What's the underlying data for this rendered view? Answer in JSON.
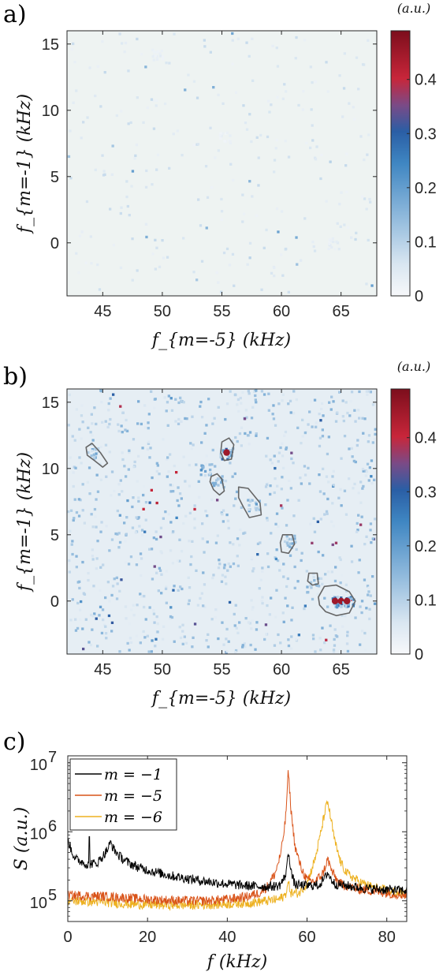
{
  "chart_data": [
    {
      "type": "heatmap",
      "panel_label": "a)",
      "xlabel": "f_{m=-5} (kHz)",
      "ylabel": "f_{m=-1} (kHz)",
      "colorbar_label": "(a.u.)",
      "xlim": [
        42,
        68
      ],
      "ylim": [
        -4,
        16
      ],
      "clim": [
        0,
        0.49
      ],
      "xticks": [
        "45",
        "50",
        "55",
        "60",
        "65"
      ],
      "yticks": [
        "0",
        "5",
        "10",
        "15"
      ],
      "cticks": [
        "0",
        "0.1",
        "0.2",
        "0.3",
        "0.4"
      ],
      "background_level": 0.03,
      "hotspots": [
        {
          "x": 64.3,
          "y": 0.0,
          "value": 0.07
        },
        {
          "x": 49.5,
          "y": 14.2,
          "value": 0.05
        },
        {
          "x": 55.2,
          "y": 8.0,
          "value": 0.05
        }
      ]
    },
    {
      "type": "heatmap",
      "panel_label": "b)",
      "xlabel": "f_{m=-5} (kHz)",
      "ylabel": "f_{m=-1} (kHz)",
      "colorbar_label": "(a.u.)",
      "xlim": [
        42,
        68
      ],
      "ylim": [
        -4,
        16
      ],
      "clim": [
        0,
        0.49
      ],
      "xticks": [
        "45",
        "50",
        "55",
        "60",
        "65"
      ],
      "yticks": [
        "0",
        "5",
        "10",
        "15"
      ],
      "cticks": [
        "0",
        "0.1",
        "0.2",
        "0.3",
        "0.4"
      ],
      "background_level": 0.06,
      "hotspots": [
        {
          "x": 55.4,
          "y": 11.2,
          "value": 0.45
        },
        {
          "x": 64.5,
          "y": 0.0,
          "value": 0.45
        },
        {
          "x": 65.0,
          "y": 0.0,
          "value": 0.45
        },
        {
          "x": 65.5,
          "y": 0.0,
          "value": 0.45
        },
        {
          "x": 44.1,
          "y": 11.2,
          "value": 0.3
        },
        {
          "x": 54.5,
          "y": 9.0,
          "value": 0.3
        },
        {
          "x": 57.6,
          "y": 7.3,
          "value": 0.3
        },
        {
          "x": 60.6,
          "y": 4.6,
          "value": 0.3
        },
        {
          "x": 62.8,
          "y": 1.5,
          "value": 0.25
        },
        {
          "x": 53.6,
          "y": 10.0,
          "value": 0.35
        }
      ],
      "contours": [
        [
          [
            43.6,
            11.6
          ],
          [
            44.1,
            11.9
          ],
          [
            44.8,
            11.2
          ],
          [
            45.4,
            10.4
          ],
          [
            45.0,
            10.1
          ],
          [
            44.3,
            10.6
          ],
          [
            43.7,
            11.0
          ]
        ],
        [
          [
            55.0,
            12.0
          ],
          [
            55.6,
            12.3
          ],
          [
            56.0,
            11.8
          ],
          [
            55.8,
            10.7
          ],
          [
            55.2,
            10.6
          ],
          [
            54.9,
            11.2
          ]
        ],
        [
          [
            54.1,
            9.4
          ],
          [
            54.6,
            9.6
          ],
          [
            55.0,
            9.2
          ],
          [
            55.2,
            8.3
          ],
          [
            54.8,
            8.0
          ],
          [
            54.3,
            8.4
          ],
          [
            54.0,
            9.0
          ]
        ],
        [
          [
            56.4,
            8.6
          ],
          [
            57.2,
            8.5
          ],
          [
            58.2,
            7.4
          ],
          [
            58.3,
            6.5
          ],
          [
            57.3,
            6.3
          ],
          [
            56.8,
            7.1
          ],
          [
            56.4,
            7.8
          ]
        ],
        [
          [
            60.1,
            5.0
          ],
          [
            60.9,
            5.0
          ],
          [
            61.1,
            4.3
          ],
          [
            60.6,
            3.6
          ],
          [
            60.0,
            3.7
          ],
          [
            59.9,
            4.4
          ]
        ],
        [
          [
            62.3,
            2.1
          ],
          [
            63.0,
            2.1
          ],
          [
            63.1,
            1.3
          ],
          [
            62.6,
            1.2
          ],
          [
            62.2,
            1.5
          ]
        ],
        [
          [
            63.1,
            0.3
          ],
          [
            63.6,
            1.1
          ],
          [
            64.6,
            1.2
          ],
          [
            65.7,
            0.7
          ],
          [
            66.2,
            0.0
          ],
          [
            65.7,
            -0.9
          ],
          [
            64.6,
            -1.1
          ],
          [
            63.7,
            -0.8
          ],
          [
            63.2,
            -0.3
          ]
        ]
      ]
    },
    {
      "type": "line",
      "panel_label": "c)",
      "xlabel": "f (kHz)",
      "ylabel": "S (a.u.)",
      "xlim": [
        0,
        85
      ],
      "ylim_log10": [
        4.7,
        7.1
      ],
      "yscale": "log",
      "xticks": [
        "0",
        "20",
        "40",
        "60",
        "80"
      ],
      "yticks": [
        {
          "base": "10",
          "exp": "5"
        },
        {
          "base": "10",
          "exp": "6"
        },
        {
          "base": "10",
          "exp": "7"
        }
      ],
      "legend_position": "top-left",
      "series": [
        {
          "name": "m = −1",
          "color": "#000000",
          "points": [
            [
              0,
              780000
            ],
            [
              1,
              520000
            ],
            [
              2,
              400000
            ],
            [
              4,
              360000
            ],
            [
              5,
              330000
            ],
            [
              6,
              350000
            ],
            [
              7,
              340000
            ],
            [
              8,
              390000
            ],
            [
              9,
              460000
            ],
            [
              10,
              560000
            ],
            [
              10.8,
              700000
            ],
            [
              11.5,
              560000
            ],
            [
              13,
              440000
            ],
            [
              15,
              360000
            ],
            [
              18,
              300000
            ],
            [
              22,
              260000
            ],
            [
              26,
              230000
            ],
            [
              30,
              210000
            ],
            [
              35,
              190000
            ],
            [
              40,
              175000
            ],
            [
              45,
              165000
            ],
            [
              50,
              160000
            ],
            [
              53,
              165000
            ],
            [
              54.5,
              220000
            ],
            [
              55.4,
              500000
            ],
            [
              56.2,
              230000
            ],
            [
              57,
              170000
            ],
            [
              60,
              165000
            ],
            [
              63,
              170000
            ],
            [
              64.4,
              210000
            ],
            [
              65.1,
              260000
            ],
            [
              65.8,
              215000
            ],
            [
              67,
              175000
            ],
            [
              70,
              165000
            ],
            [
              75,
              150000
            ],
            [
              80,
              145000
            ],
            [
              85,
              140000
            ]
          ],
          "peaks": [
            {
              "x": 5.4,
              "y": 850000
            }
          ]
        },
        {
          "name": "m = −5",
          "color": "#d95319",
          "points": [
            [
              0,
              120000
            ],
            [
              5,
              118000
            ],
            [
              10,
              115000
            ],
            [
              15,
              110000
            ],
            [
              20,
              105000
            ],
            [
              25,
              102000
            ],
            [
              30,
              100000
            ],
            [
              35,
              100000
            ],
            [
              40,
              105000
            ],
            [
              45,
              115000
            ],
            [
              48,
              130000
            ],
            [
              50,
              160000
            ],
            [
              52,
              250000
            ],
            [
              53.5,
              500000
            ],
            [
              54.6,
              1500000
            ],
            [
              55.3,
              7500000
            ],
            [
              56,
              2000000
            ],
            [
              57,
              600000
            ],
            [
              58.5,
              300000
            ],
            [
              60,
              200000
            ],
            [
              62,
              190000
            ],
            [
              64,
              250000
            ],
            [
              65.2,
              400000
            ],
            [
              66.3,
              260000
            ],
            [
              68,
              180000
            ],
            [
              72,
              150000
            ],
            [
              76,
              140000
            ],
            [
              80,
              130000
            ],
            [
              85,
              120000
            ]
          ]
        },
        {
          "name": "m = −6",
          "color": "#edb120",
          "points": [
            [
              0,
              100000
            ],
            [
              5,
              98000
            ],
            [
              10,
              95000
            ],
            [
              15,
              90000
            ],
            [
              20,
              88000
            ],
            [
              25,
              87000
            ],
            [
              30,
              87000
            ],
            [
              35,
              88000
            ],
            [
              40,
              90000
            ],
            [
              45,
              93000
            ],
            [
              50,
              100000
            ],
            [
              53,
              105000
            ],
            [
              54.5,
              120000
            ],
            [
              55.3,
              180000
            ],
            [
              56,
              130000
            ],
            [
              58,
              130000
            ],
            [
              60,
              180000
            ],
            [
              62,
              400000
            ],
            [
              63.5,
              1000000
            ],
            [
              64.5,
              2000000
            ],
            [
              65.2,
              2700000
            ],
            [
              66,
              1500000
            ],
            [
              67,
              700000
            ],
            [
              68.5,
              350000
            ],
            [
              70,
              250000
            ],
            [
              73,
              190000
            ],
            [
              76,
              160000
            ],
            [
              80,
              140000
            ],
            [
              85,
              125000
            ]
          ]
        }
      ]
    }
  ]
}
